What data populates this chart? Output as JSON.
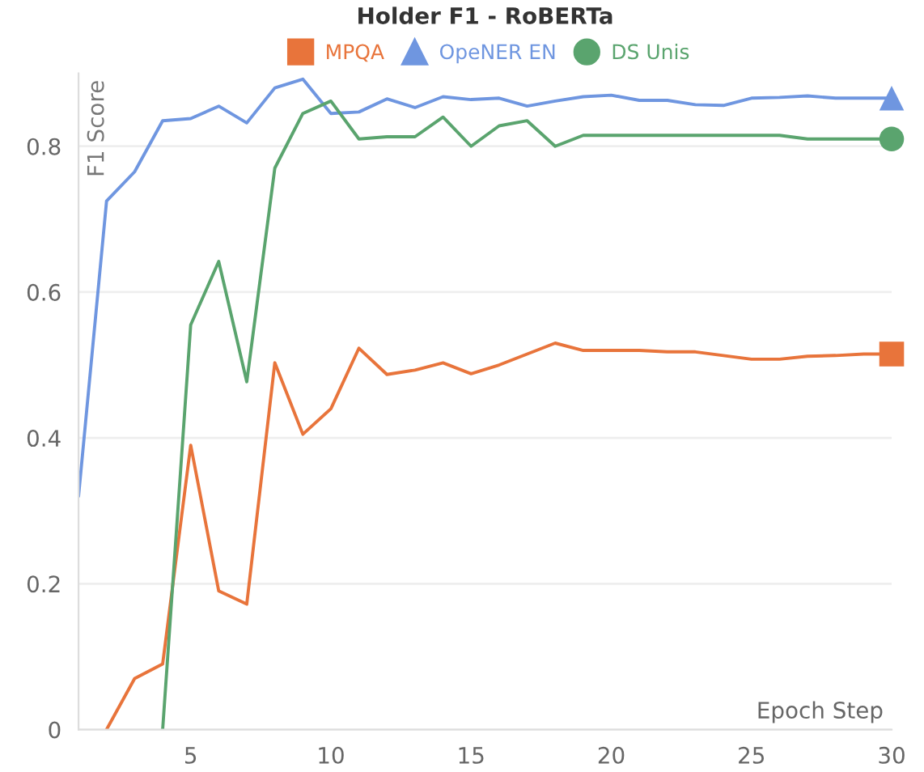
{
  "chart_data": {
    "type": "line",
    "title": "Holder F1 - RoBERTa",
    "xlabel": "Epoch Step",
    "ylabel": "F1 Score",
    "x": [
      1,
      2,
      3,
      4,
      5,
      6,
      7,
      8,
      9,
      10,
      11,
      12,
      13,
      14,
      15,
      16,
      17,
      18,
      19,
      20,
      21,
      22,
      23,
      24,
      25,
      26,
      27,
      28,
      29,
      30
    ],
    "series": [
      {
        "name": "MPQA",
        "color": "#e8743b",
        "values": [
          null,
          0,
          0.07,
          0.09,
          0.39,
          0.19,
          0.172,
          0.503,
          0.405,
          0.44,
          0.523,
          0.487,
          0.493,
          0.503,
          0.488,
          0.5,
          0.515,
          0.53,
          0.52,
          0.52,
          0.52,
          0.518,
          0.518,
          0.513,
          0.508,
          0.508,
          0.512,
          0.513,
          0.515,
          0.515
        ]
      },
      {
        "type": "scatter",
        "color": "#e8743b",
        "marker": "square",
        "values": [
          null,
          null,
          null,
          null,
          null,
          null,
          null,
          null,
          null,
          null,
          null,
          null,
          null,
          null,
          null,
          null,
          null,
          null,
          null,
          null,
          null,
          null,
          null,
          null,
          null,
          null,
          null,
          null,
          null,
          0.515
        ]
      },
      {
        "name": "OpeNER EN",
        "color": "#6f96e0",
        "values": [
          0.32,
          0.725,
          0.765,
          0.835,
          0.838,
          0.855,
          0.832,
          0.88,
          0.892,
          0.845,
          0.847,
          0.865,
          0.853,
          0.868,
          0.864,
          0.866,
          0.855,
          0.862,
          0.868,
          0.87,
          0.863,
          0.863,
          0.857,
          0.856,
          0.866,
          0.867,
          0.869,
          0.866,
          0.866,
          0.866
        ]
      },
      {
        "type": "scatter",
        "color": "#6f96e0",
        "marker": "triangle",
        "values": [
          null,
          null,
          null,
          null,
          null,
          null,
          null,
          null,
          null,
          null,
          null,
          null,
          null,
          null,
          null,
          null,
          null,
          null,
          null,
          null,
          null,
          null,
          null,
          null,
          null,
          null,
          null,
          null,
          null,
          0.866
        ]
      },
      {
        "name": "DS Unis",
        "color": "#5aa46e",
        "values": [
          null,
          null,
          null,
          0,
          0.555,
          0.642,
          0.477,
          0.77,
          0.845,
          0.862,
          0.81,
          0.813,
          0.813,
          0.84,
          0.8,
          0.828,
          0.835,
          0.8,
          0.815,
          0.815,
          0.815,
          0.815,
          0.815,
          0.815,
          0.815,
          0.815,
          0.81,
          0.81,
          0.81,
          0.81
        ]
      },
      {
        "type": "scatter",
        "color": "#5aa46e",
        "marker": "circle",
        "values": [
          null,
          null,
          null,
          null,
          null,
          null,
          null,
          null,
          null,
          null,
          null,
          null,
          null,
          null,
          null,
          null,
          null,
          null,
          null,
          null,
          null,
          null,
          null,
          null,
          null,
          null,
          null,
          null,
          null,
          0.81
        ]
      }
    ],
    "xlim": [
      1,
      30
    ],
    "ylim": [
      0,
      0.9
    ],
    "xticks": [
      5,
      10,
      15,
      20,
      25,
      30
    ],
    "yticks": [
      0,
      0.2,
      0.4,
      0.6,
      0.8
    ],
    "grid": "y",
    "legend": "top"
  }
}
